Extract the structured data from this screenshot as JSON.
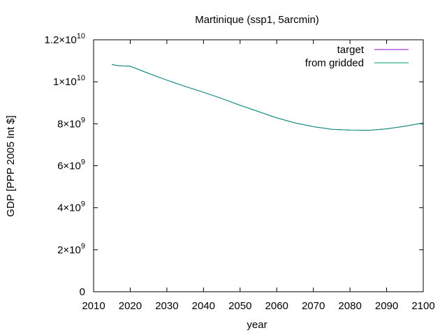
{
  "chart_data": {
    "type": "line",
    "title": "Martinique (ssp1, 5arcmin)",
    "xlabel": "year",
    "ylabel": "GDP [PPP 2005 Int $]",
    "xlim": [
      2010,
      2100
    ],
    "ylim": [
      0,
      12000000000
    ],
    "x_ticks": [
      2010,
      2020,
      2030,
      2040,
      2050,
      2060,
      2070,
      2080,
      2090,
      2100
    ],
    "y_ticks": [
      {
        "value": 0,
        "mantissa": "0",
        "exp": ""
      },
      {
        "value": 2000000000,
        "mantissa": "2×10",
        "exp": "9"
      },
      {
        "value": 4000000000,
        "mantissa": "4×10",
        "exp": "9"
      },
      {
        "value": 6000000000,
        "mantissa": "6×10",
        "exp": "9"
      },
      {
        "value": 8000000000,
        "mantissa": "8×10",
        "exp": "9"
      },
      {
        "value": 10000000000,
        "mantissa": "1×10",
        "exp": "10"
      },
      {
        "value": 12000000000,
        "mantissa": "1.2×10",
        "exp": "10"
      }
    ],
    "grid": false,
    "legend_position": "top-right",
    "series": [
      {
        "name": "target",
        "color": "#9400d3",
        "x": [
          2015,
          2017,
          2020,
          2025,
          2030,
          2035,
          2040,
          2045,
          2050,
          2055,
          2060,
          2065,
          2070,
          2075,
          2080,
          2085,
          2090,
          2095,
          2100
        ],
        "y": [
          10820000000,
          10760000000,
          10740000000,
          10400000000,
          10080000000,
          9780000000,
          9500000000,
          9200000000,
          8880000000,
          8580000000,
          8280000000,
          8040000000,
          7860000000,
          7740000000,
          7700000000,
          7690000000,
          7760000000,
          7880000000,
          8040000000
        ]
      },
      {
        "name": "from gridded",
        "color": "#009e73",
        "x": [
          2015,
          2017,
          2020,
          2025,
          2030,
          2035,
          2040,
          2045,
          2050,
          2055,
          2060,
          2065,
          2070,
          2075,
          2080,
          2085,
          2090,
          2095,
          2100
        ],
        "y": [
          10820000000,
          10760000000,
          10740000000,
          10400000000,
          10080000000,
          9780000000,
          9500000000,
          9200000000,
          8880000000,
          8580000000,
          8280000000,
          8040000000,
          7860000000,
          7740000000,
          7700000000,
          7690000000,
          7760000000,
          7880000000,
          8040000000
        ]
      }
    ]
  }
}
